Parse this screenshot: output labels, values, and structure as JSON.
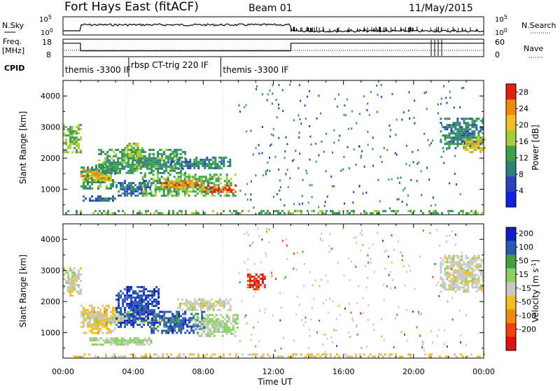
{
  "header": {
    "station": "Fort Hays East (fitACF)",
    "beam": "Beam 01",
    "date": "11/May/2015"
  },
  "status_panels": {
    "nsky_label": "N.Sky",
    "nsky_ticks": [
      "10^5",
      "10^0"
    ],
    "nsearch_label": "N.Search",
    "nsearch_ticks": [
      "10^5",
      "10^0"
    ],
    "freq_label": "Freq.",
    "freq_unit": "[MHz]",
    "freq_ticks": [
      18,
      8
    ],
    "nave_label": "Nave",
    "nave_ticks": [
      60,
      0
    ],
    "cpid_label": "CPID",
    "cpid_segments": [
      {
        "label": "themis -3300 IF",
        "start_hour": 0.0
      },
      {
        "label": "rbsp CT-trig 220 IF",
        "start_hour": 3.75
      },
      {
        "label": "themis -3300 IF",
        "start_hour": 9.0
      }
    ],
    "freq_steps": [
      {
        "start_hour": 0.0,
        "end_hour": 1.0,
        "freq": 17
      },
      {
        "start_hour": 1.0,
        "end_hour": 13.0,
        "freq": 11
      },
      {
        "start_hour": 13.0,
        "end_hour": 24.0,
        "freq": 17
      }
    ]
  },
  "chart_data": [
    {
      "type": "heatmap",
      "title": "",
      "xlabel": "Time UT",
      "ylabel": "Slant Range [km]",
      "xlim": [
        0,
        24
      ],
      "ylim": [
        180,
        4500
      ],
      "x_ticks": [
        "00:00",
        "04:00",
        "08:00",
        "12:00",
        "16:00",
        "20:00",
        "00:00"
      ],
      "y_ticks": [
        1000,
        2000,
        3000,
        4000
      ],
      "colorbar_label": "Power [dB]",
      "colorbar_ticks": [
        4,
        8,
        12,
        16,
        20,
        24,
        28
      ],
      "colorbar_range": [
        0,
        30
      ],
      "colors": [
        "#1020e0",
        "#2a40c0",
        "#2c8078",
        "#3aa04a",
        "#9fcf3a",
        "#f0c020",
        "#f08a10",
        "#e02010"
      ],
      "regions": [
        {
          "t0": 0.0,
          "t1": 1.0,
          "r0": 2200,
          "r1": 3100,
          "level": 16
        },
        {
          "t0": 1.0,
          "t1": 3.0,
          "r0": 1000,
          "r1": 1800,
          "level": 12
        },
        {
          "t0": 1.0,
          "t1": 2.8,
          "r0": 1300,
          "r1": 1650,
          "level": 22
        },
        {
          "t0": 2.0,
          "t1": 7.0,
          "r0": 1500,
          "r1": 2300,
          "level": 12
        },
        {
          "t0": 3.0,
          "t1": 5.0,
          "r0": 800,
          "r1": 1300,
          "level": 8
        },
        {
          "t0": 4.5,
          "t1": 9.8,
          "r0": 800,
          "r1": 1500,
          "level": 14
        },
        {
          "t0": 5.5,
          "t1": 8.0,
          "r0": 1050,
          "r1": 1300,
          "level": 24
        },
        {
          "t0": 8.0,
          "t1": 9.8,
          "r0": 900,
          "r1": 1150,
          "level": 26
        },
        {
          "t0": 6.0,
          "t1": 9.5,
          "r0": 1650,
          "r1": 2050,
          "level": 10
        },
        {
          "t0": 1.0,
          "t1": 3.0,
          "r0": 600,
          "r1": 800,
          "level": 8
        },
        {
          "t0": 3.5,
          "t1": 4.5,
          "r0": 2000,
          "r1": 2500,
          "level": 16
        },
        {
          "t0": 21.5,
          "t1": 24.0,
          "r0": 2300,
          "r1": 3300,
          "level": 10
        },
        {
          "t0": 22.8,
          "t1": 24.0,
          "r0": 2200,
          "r1": 2700,
          "level": 20
        },
        {
          "t0": 0.0,
          "t1": 24.0,
          "r0": 200,
          "r1": 330,
          "level": 14
        }
      ]
    },
    {
      "type": "heatmap",
      "title": "",
      "xlabel": "Time UT",
      "ylabel": "Slant Range [km]",
      "xlim": [
        0,
        24
      ],
      "ylim": [
        180,
        4500
      ],
      "x_ticks": [
        "00:00",
        "04:00",
        "08:00",
        "12:00",
        "16:00",
        "20:00",
        "00:00"
      ],
      "y_ticks": [
        1000,
        2000,
        3000,
        4000
      ],
      "colorbar_label": "Velocity [m s^-1]",
      "colorbar_ticks": [
        200,
        100,
        50,
        15,
        -15,
        -50,
        -100,
        -200
      ],
      "colorbar_range": [
        -250,
        250
      ],
      "colors": [
        "#e01010",
        "#f04010",
        "#f08a10",
        "#f0c020",
        "#c8c8c8",
        "#8ad060",
        "#40a040",
        "#2a5ab0",
        "#1020c0"
      ],
      "regions": [
        {
          "t0": 0.0,
          "t1": 1.0,
          "r0": 2200,
          "r1": 3100,
          "level": 0
        },
        {
          "t0": 1.0,
          "t1": 3.0,
          "r0": 1000,
          "r1": 1900,
          "level": -40
        },
        {
          "t0": 1.0,
          "t1": 5.5,
          "r0": 1300,
          "r1": 1700,
          "level": 0
        },
        {
          "t0": 3.0,
          "t1": 5.5,
          "r0": 1200,
          "r1": 2500,
          "level": 180
        },
        {
          "t0": 5.0,
          "t1": 8.0,
          "r0": 1000,
          "r1": 1700,
          "level": 160
        },
        {
          "t0": 7.5,
          "t1": 10.0,
          "r0": 900,
          "r1": 1600,
          "level": 30
        },
        {
          "t0": 6.5,
          "t1": 9.5,
          "r0": 1700,
          "r1": 2100,
          "level": 0
        },
        {
          "t0": 1.5,
          "t1": 5.0,
          "r0": 600,
          "r1": 850,
          "level": 30
        },
        {
          "t0": 10.5,
          "t1": 11.5,
          "r0": 2400,
          "r1": 2900,
          "level": -180
        },
        {
          "t0": 21.5,
          "t1": 24.0,
          "r0": 2300,
          "r1": 3500,
          "level": 0
        },
        {
          "t0": 0.0,
          "t1": 24.0,
          "r0": 200,
          "r1": 330,
          "level": -40
        }
      ]
    }
  ]
}
